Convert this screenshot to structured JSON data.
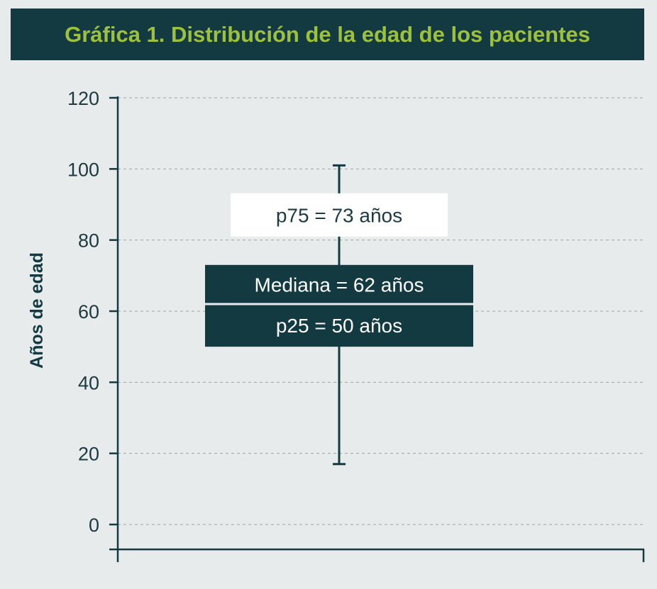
{
  "chart_data": {
    "type": "box",
    "title": "Gráfica 1. Distribución de la edad de los pacientes",
    "ylabel": "Años de edad",
    "xlabel": "",
    "ylim": [
      -7,
      120
    ],
    "yticks": [
      0,
      20,
      40,
      60,
      80,
      100,
      120
    ],
    "yticklabels": [
      "0",
      "20",
      "40",
      "60",
      "80",
      "100",
      "120"
    ],
    "grid": true,
    "box": {
      "min": 17,
      "p25": 50,
      "median": 62,
      "p75": 73,
      "max": 101
    },
    "annotations": {
      "p75": "p75 = 73 años",
      "median": "Mediana = 62 años",
      "p25": "p25 = 50 años"
    },
    "colors": {
      "dark": "#133a40",
      "accent": "#9dc23a",
      "background": "#e7ebec",
      "label_box": "#ffffff"
    }
  }
}
